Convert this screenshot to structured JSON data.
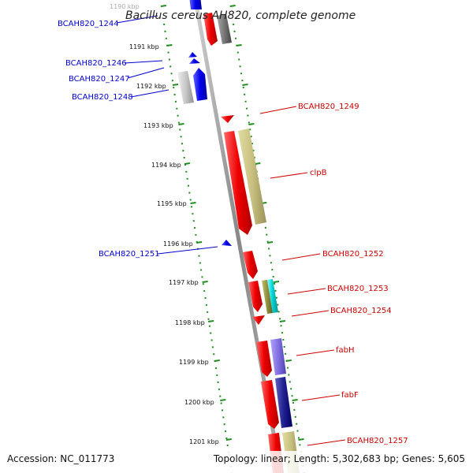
{
  "title": "Bacillus cereus AH820, complete genome",
  "footer": {
    "accession": "Accession: NC_011773",
    "topology": "Topology: linear; Length: 5,302,683 bp; Genes: 5,605"
  },
  "colors": {
    "forward_label": "#cc0000",
    "reverse_label": "#0000cc",
    "backbone": "#999999",
    "tick": "#228b22"
  },
  "ticks": [
    "1190 kbp",
    "1191 kbp",
    "1192 kbp",
    "1193 kbp",
    "1194 kbp",
    "1195 kbp",
    "1196 kbp",
    "1197 kbp",
    "1198 kbp",
    "1199 kbp",
    "1200 kbp",
    "1201 kbp"
  ],
  "genes_forward": [
    "BCAH820_1249",
    "clpB",
    "BCAH820_1252",
    "BCAH820_1253",
    "BCAH820_1254",
    "fabH",
    "fabF",
    "BCAH820_1257"
  ],
  "genes_reverse": [
    "BCAH820_1244",
    "BCAH820_1246",
    "BCAH820_1247",
    "BCAH820_1248",
    "BCAH820_1251"
  ]
}
